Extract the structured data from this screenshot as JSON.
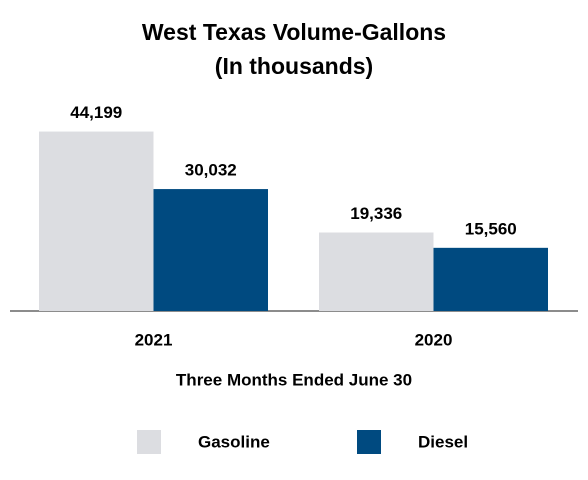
{
  "chart_data": {
    "type": "bar",
    "title": "West Texas Volume-Gallons",
    "subtitle": "(In thousands)",
    "x_label": "Three Months Ended June 30",
    "categories": [
      "2021",
      "2020"
    ],
    "series": [
      {
        "name": "Gasoline",
        "color": "#dcdde1",
        "values": [
          44199,
          19336
        ],
        "value_labels": [
          "44,199",
          "19,336"
        ]
      },
      {
        "name": "Diesel",
        "color": "#004a80",
        "values": [
          30032,
          15560
        ],
        "value_labels": [
          "30,032",
          "15,560"
        ]
      }
    ],
    "ylim": [
      0,
      50000
    ],
    "legend": "bottom"
  }
}
